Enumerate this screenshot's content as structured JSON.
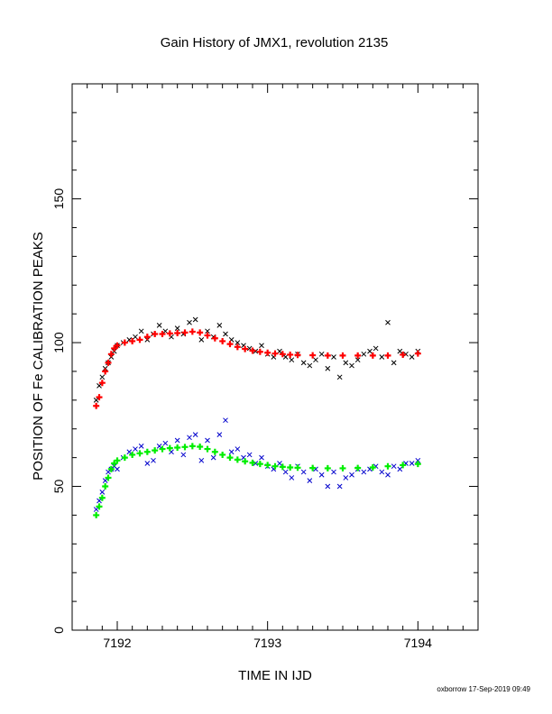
{
  "chart_data": {
    "type": "scatter",
    "title": "Gain History of JMX1, revolution 2135",
    "xlabel": "TIME IN IJD",
    "ylabel": "POSITION OF Fe CALIBRATION PEAKS",
    "xlim": [
      7191.7,
      7194.4
    ],
    "ylim": [
      0,
      190
    ],
    "x_ticks": [
      7192,
      7193,
      7194
    ],
    "y_ticks": [
      0,
      50,
      100,
      150
    ],
    "x_tick_labels": [
      "7192",
      "7193",
      "7194"
    ],
    "y_tick_labels": [
      "0",
      "50",
      "100",
      "150"
    ],
    "footer": "oxborrow 17-Sep-2019 09:49",
    "colors": {
      "upper_points": "#000000",
      "upper_fit": "#ff0000",
      "lower_points": "#0000cc",
      "lower_fit": "#00ee00"
    },
    "series": [
      {
        "marker": "x",
        "color": "#000000",
        "x": [
          7191.86,
          7191.88,
          7191.9,
          7191.92,
          7191.94,
          7191.96,
          7191.98,
          7192.0,
          7192.04,
          7192.08,
          7192.12,
          7192.16,
          7192.2,
          7192.24,
          7192.28,
          7192.32,
          7192.36,
          7192.4,
          7192.44,
          7192.48,
          7192.52,
          7192.56,
          7192.6,
          7192.64,
          7192.68,
          7192.72,
          7192.76,
          7192.8,
          7192.84,
          7192.88,
          7192.92,
          7192.96,
          7193.0,
          7193.04,
          7193.08,
          7193.12,
          7193.16,
          7193.2,
          7193.24,
          7193.28,
          7193.32,
          7193.36,
          7193.4,
          7193.44,
          7193.48,
          7193.52,
          7193.56,
          7193.6,
          7193.64,
          7193.68,
          7193.72,
          7193.76,
          7193.8,
          7193.84,
          7193.88,
          7193.92,
          7193.96,
          7194.0
        ],
        "y": [
          80,
          85,
          88,
          91,
          93,
          95,
          97,
          99,
          100,
          101,
          102,
          104,
          101,
          103,
          106,
          104,
          102,
          105,
          103,
          107,
          108,
          101,
          104,
          102,
          106,
          103,
          101,
          100,
          99,
          98,
          97,
          99,
          96,
          95,
          97,
          95,
          94,
          96,
          93,
          92,
          94,
          96,
          91,
          95,
          88,
          93,
          92,
          94,
          96,
          97,
          98,
          95,
          107,
          93,
          97,
          96,
          95,
          97
        ]
      },
      {
        "marker": "+",
        "color": "#ff0000",
        "x": [
          7191.86,
          7191.88,
          7191.9,
          7191.92,
          7191.94,
          7191.96,
          7191.98,
          7192.0,
          7192.05,
          7192.1,
          7192.15,
          7192.2,
          7192.25,
          7192.3,
          7192.35,
          7192.4,
          7192.45,
          7192.5,
          7192.55,
          7192.6,
          7192.65,
          7192.7,
          7192.75,
          7192.8,
          7192.85,
          7192.9,
          7192.95,
          7193.0,
          7193.05,
          7193.1,
          7193.15,
          7193.2,
          7193.3,
          7193.4,
          7193.5,
          7193.6,
          7193.7,
          7193.8,
          7193.9,
          7194.0
        ],
        "y": [
          78,
          81,
          86,
          90,
          93,
          96,
          98,
          99,
          100,
          100.5,
          101,
          102,
          103,
          103,
          103.2,
          103.3,
          103.5,
          103.8,
          103.5,
          102.5,
          101.5,
          100.5,
          99.5,
          98.5,
          97.8,
          97.2,
          96.8,
          96.5,
          96.2,
          96,
          95.8,
          95.7,
          95.6,
          95.5,
          95.5,
          95.5,
          95.5,
          95.5,
          95.8,
          96.2
        ]
      },
      {
        "marker": "x",
        "color": "#0000cc",
        "x": [
          7191.86,
          7191.88,
          7191.9,
          7191.92,
          7191.94,
          7191.96,
          7191.98,
          7192.0,
          7192.04,
          7192.08,
          7192.12,
          7192.16,
          7192.2,
          7192.24,
          7192.28,
          7192.32,
          7192.36,
          7192.4,
          7192.44,
          7192.48,
          7192.52,
          7192.56,
          7192.6,
          7192.64,
          7192.68,
          7192.72,
          7192.76,
          7192.8,
          7192.84,
          7192.88,
          7192.92,
          7192.96,
          7193.0,
          7193.04,
          7193.08,
          7193.12,
          7193.16,
          7193.2,
          7193.24,
          7193.28,
          7193.32,
          7193.36,
          7193.4,
          7193.44,
          7193.48,
          7193.52,
          7193.56,
          7193.6,
          7193.64,
          7193.68,
          7193.72,
          7193.76,
          7193.8,
          7193.84,
          7193.88,
          7193.92,
          7193.96,
          7194.0
        ],
        "y": [
          42,
          45,
          48,
          52,
          55,
          56,
          57,
          56,
          60,
          62,
          63,
          64,
          58,
          59,
          64,
          65,
          62,
          66,
          61,
          67,
          68,
          59,
          66,
          60,
          68,
          73,
          62,
          63,
          60,
          61,
          58,
          60,
          57,
          56,
          58,
          55,
          53,
          57,
          55,
          52,
          56,
          54,
          50,
          55,
          50,
          53,
          54,
          56,
          55,
          56,
          57,
          55,
          54,
          57,
          56,
          58,
          58,
          59
        ]
      },
      {
        "marker": "+",
        "color": "#00ee00",
        "x": [
          7191.86,
          7191.88,
          7191.9,
          7191.92,
          7191.94,
          7191.96,
          7191.98,
          7192.0,
          7192.05,
          7192.1,
          7192.15,
          7192.2,
          7192.25,
          7192.3,
          7192.35,
          7192.4,
          7192.45,
          7192.5,
          7192.55,
          7192.6,
          7192.65,
          7192.7,
          7192.75,
          7192.8,
          7192.85,
          7192.9,
          7192.95,
          7193.0,
          7193.05,
          7193.1,
          7193.15,
          7193.2,
          7193.3,
          7193.4,
          7193.5,
          7193.6,
          7193.7,
          7193.8,
          7193.9,
          7194.0
        ],
        "y": [
          40,
          43,
          46,
          50,
          53,
          56,
          58,
          59,
          60,
          61,
          61.5,
          62,
          62.5,
          63,
          63.3,
          63.5,
          63.7,
          64,
          63.8,
          63,
          62,
          61,
          60,
          59.3,
          58.7,
          58.2,
          57.8,
          57.4,
          57,
          56.8,
          56.6,
          56.5,
          56.4,
          56.3,
          56.3,
          56.4,
          56.6,
          57,
          57.4,
          57.8
        ]
      }
    ]
  }
}
